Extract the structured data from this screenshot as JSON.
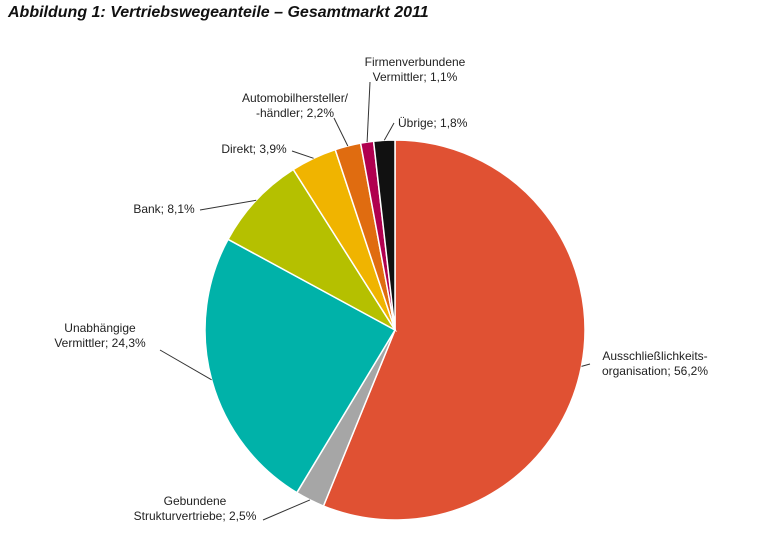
{
  "chart_data": {
    "type": "pie",
    "title": "Abbildung 1: Vertriebswegeanteile – Gesamtmarkt 2011",
    "slices": [
      {
        "label_lines": [
          "Ausschließlichkeits-",
          "organisation;  56,2%"
        ],
        "value": 56.2,
        "color": "#E05133"
      },
      {
        "label_lines": [
          "Gebundene",
          "Strukturvertriebe;  2,5%"
        ],
        "value": 2.5,
        "color": "#A6A6A6"
      },
      {
        "label_lines": [
          "Unabhängige",
          "Vermittler; 24,3%"
        ],
        "value": 24.3,
        "color": "#00B2A9"
      },
      {
        "label_lines": [
          "Bank; 8,1%"
        ],
        "value": 8.1,
        "color": "#B5C000"
      },
      {
        "label_lines": [
          "Direkt; 3,9%"
        ],
        "value": 3.9,
        "color": "#F0B400"
      },
      {
        "label_lines": [
          "Automobilhersteller/",
          "-händler; 2,2%"
        ],
        "value": 2.2,
        "color": "#E06C10"
      },
      {
        "label_lines": [
          "Firmenverbundene",
          "Vermittler; 1,1%"
        ],
        "value": 1.1,
        "color": "#B0004F"
      },
      {
        "label_lines": [
          "Übrige;  1,8%"
        ],
        "value": 1.8,
        "color": "#111111"
      }
    ]
  }
}
